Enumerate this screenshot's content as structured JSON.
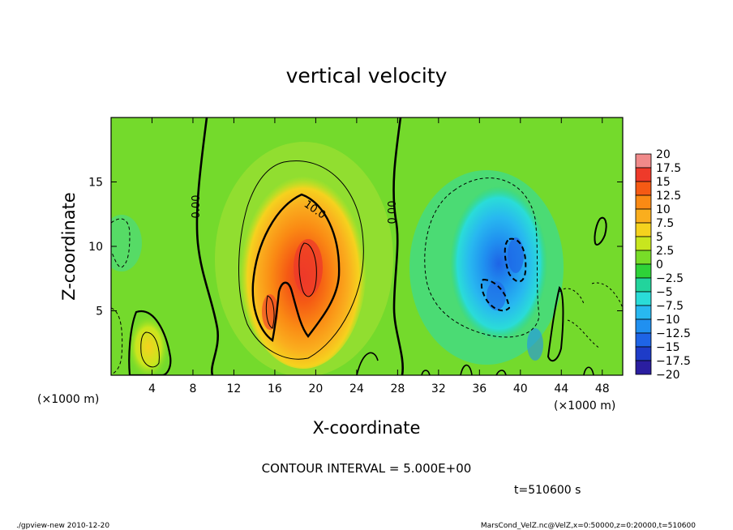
{
  "chart_data": {
    "type": "heatmap",
    "title": "vertical velocity",
    "xlabel": "X-coordinate",
    "ylabel": "Z-coordinate",
    "x_unit_left": "(×1000 m)",
    "x_unit_right": "(×1000 m)",
    "xlim": [
      0,
      50
    ],
    "ylim": [
      0,
      20
    ],
    "xticks": [
      4,
      8,
      12,
      16,
      20,
      24,
      28,
      32,
      36,
      40,
      44,
      48
    ],
    "yticks": [
      5,
      10,
      15
    ],
    "contour_interval_text": "CONTOUR INTERVAL = 5.000E+00",
    "time_text": "t=510600 s",
    "contour_labels": [
      "0.00",
      "0.00",
      "10.0"
    ],
    "colorbar": {
      "levels": [
        "20",
        "17.5",
        "15",
        "12.5",
        "10",
        "7.5",
        "5",
        "2.5",
        "0",
        "-2.5",
        "-5",
        "-7.5",
        "-10",
        "-12.5",
        "-15",
        "-17.5",
        "-20"
      ],
      "colors": [
        "#f08a8a",
        "#ee3a2a",
        "#f55a14",
        "#fa8a14",
        "#faae1e",
        "#f5d21e",
        "#c8e61e",
        "#78dc28",
        "#2ed238",
        "#22d49c",
        "#2adcd8",
        "#28b8f0",
        "#2090f0",
        "#1e64e6",
        "#1e3cc8",
        "#2a1ea0",
        "#6e1eb4"
      ]
    },
    "regions": [
      {
        "name": "updraft",
        "x": 19,
        "z": 8.5,
        "peak": 17.5
      },
      {
        "name": "downdraft",
        "x": 38.5,
        "z": 8,
        "peak": -12.5
      },
      {
        "name": "weak updraft",
        "x": 3.5,
        "z": 2.5,
        "peak": 7.5
      }
    ]
  },
  "footer": {
    "left": "./gpview-new  2010-12-20",
    "right": "MarsCond_VelZ.nc@VelZ,x=0:50000,z=0:20000,t=510600"
  }
}
